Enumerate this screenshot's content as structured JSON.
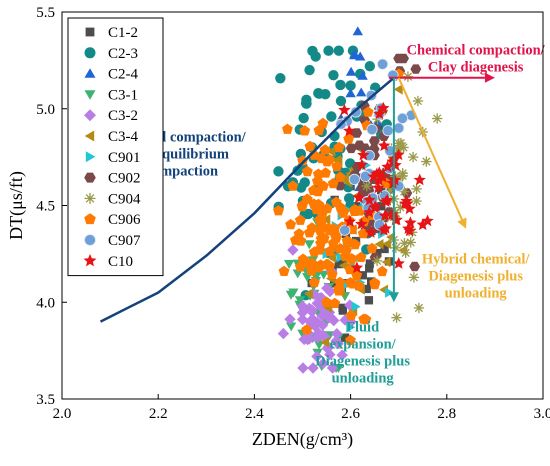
{
  "chart_data": {
    "type": "scatter",
    "xlabel": "ZDEN(g/cm³)",
    "ylabel": "DT(μs/ft)",
    "xlim": [
      2.0,
      3.0
    ],
    "ylim": [
      3.5,
      5.5
    ],
    "xticks": [
      "2.0",
      "2.2",
      "2.4",
      "2.6",
      "2.8",
      "3.0"
    ],
    "yticks": [
      "3.5",
      "4.0",
      "4.5",
      "5.0",
      "5.5"
    ],
    "grid": false,
    "legend_position": "top-left",
    "series": [
      {
        "name": "C1-2",
        "color": "#4d4d4d",
        "marker": "square",
        "cx": 2.62,
        "cy": 4.3,
        "sx": 0.04,
        "sy": 0.28,
        "n": 30,
        "seed": 11,
        "x": [
          2.6,
          2.64,
          2.66
        ],
        "y": [
          4.6,
          4.2,
          4.9
        ]
      },
      {
        "name": "C2-3",
        "color": "#148a88",
        "marker": "circle",
        "cx": 2.56,
        "cy": 4.75,
        "sx": 0.05,
        "sy": 0.28,
        "n": 55,
        "seed": 23,
        "x": [
          2.48,
          2.5,
          2.52,
          2.54,
          2.56,
          2.58,
          2.6,
          2.62,
          2.64,
          2.47,
          2.49
        ],
        "y": [
          4.62,
          4.7,
          4.8,
          4.88,
          4.96,
          5.04,
          5.12,
          5.18,
          5.22,
          4.6,
          4.68
        ]
      },
      {
        "name": "C2-4",
        "color": "#1f65d6",
        "marker": "triangle-up",
        "cx": 2.63,
        "cy": 4.9,
        "sx": 0.02,
        "sy": 0.2,
        "n": 8,
        "seed": 37,
        "x": [
          2.615,
          2.62,
          2.625,
          2.6,
          2.58
        ],
        "y": [
          5.4,
          5.27,
          5.17,
          5.08,
          4.95
        ]
      },
      {
        "name": "C3-1",
        "color": "#3cb371",
        "marker": "triangle-down",
        "cx": 2.53,
        "cy": 4.0,
        "sx": 0.035,
        "sy": 0.17,
        "n": 40,
        "seed": 41,
        "x": [
          2.54,
          2.49,
          2.51
        ],
        "y": [
          3.67,
          4.2,
          4.13
        ]
      },
      {
        "name": "C3-2",
        "color": "#b97de6",
        "marker": "diamond",
        "cx": 2.54,
        "cy": 3.9,
        "sx": 0.03,
        "sy": 0.12,
        "n": 55,
        "seed": 53,
        "x": [
          2.48,
          2.5,
          2.53,
          2.57
        ],
        "y": [
          4.27,
          3.98,
          3.72,
          3.8
        ]
      },
      {
        "name": "C3-4",
        "color": "#b58b16",
        "marker": "triangle-left",
        "cx": 2.6,
        "cy": 4.3,
        "sx": 0.05,
        "sy": 0.25,
        "n": 35,
        "seed": 67,
        "x": [
          2.58,
          2.66,
          2.7
        ],
        "y": [
          4.05,
          4.3,
          5.1
        ]
      },
      {
        "name": "C901",
        "color": "#22c7d6",
        "marker": "triangle-right",
        "cx": 2.62,
        "cy": 4.25,
        "sx": 0.04,
        "sy": 0.2,
        "n": 14,
        "seed": 71,
        "x": [
          2.68,
          2.55
        ],
        "y": [
          4.05,
          4.25
        ]
      },
      {
        "name": "C902",
        "color": "#7a4a4a",
        "marker": "hexagon",
        "cx": 2.65,
        "cy": 4.65,
        "sx": 0.035,
        "sy": 0.22,
        "n": 45,
        "seed": 83,
        "x": [
          2.69,
          2.7,
          2.71,
          2.66
        ],
        "y": [
          5.17,
          5.26,
          5.26,
          5.0
        ]
      },
      {
        "name": "C904",
        "color": "#9a9a4a",
        "marker": "asterisk",
        "cx": 2.68,
        "cy": 4.55,
        "sx": 0.04,
        "sy": 0.3,
        "n": 40,
        "seed": 97,
        "x": [
          2.74,
          2.75,
          2.71,
          2.73
        ],
        "y": [
          5.04,
          4.88,
          4.8,
          4.75
        ]
      },
      {
        "name": "C906",
        "color": "#ff7a00",
        "marker": "pentagon",
        "cx": 2.56,
        "cy": 4.4,
        "sx": 0.045,
        "sy": 0.25,
        "n": 110,
        "seed": 101,
        "x": [
          2.48,
          2.5,
          2.52,
          2.55,
          2.6,
          2.65,
          2.7
        ],
        "y": [
          4.6,
          4.5,
          4.2,
          4.0,
          4.1,
          4.1,
          5.18
        ]
      },
      {
        "name": "C907",
        "color": "#6e9fd6",
        "marker": "sphere",
        "cx": 2.64,
        "cy": 4.7,
        "sx": 0.03,
        "sy": 0.22,
        "n": 25,
        "seed": 113,
        "x": [
          2.7,
          2.7,
          2.66
        ],
        "y": [
          4.9,
          4.6,
          4.4
        ]
      },
      {
        "name": "C10",
        "color": "#e61414",
        "marker": "star",
        "cx": 2.67,
        "cy": 4.55,
        "sx": 0.035,
        "sy": 0.2,
        "n": 45,
        "seed": 127,
        "x": [
          2.75,
          2.76,
          2.72,
          2.7
        ],
        "y": [
          4.4,
          4.42,
          4.38,
          4.2
        ]
      }
    ],
    "trend_curve": {
      "color": "#14427a",
      "x": [
        2.08,
        2.2,
        2.3,
        2.4,
        2.5,
        2.6,
        2.69
      ],
      "y": [
        3.9,
        4.05,
        4.24,
        4.46,
        4.72,
        4.97,
        5.16
      ]
    },
    "annotations": [
      {
        "lines": [
          "Chemical compaction/",
          "Clay diagenesis"
        ],
        "color": "#e0144a",
        "x": 2.86,
        "y": 5.28
      },
      {
        "lines": [
          "Normal compaction/",
          "Disequilibrium",
          "compaction"
        ],
        "color": "#14427a",
        "x": 2.25,
        "y": 4.83
      },
      {
        "lines": [
          "Hybrid chemical/",
          "Diagenesis plus",
          "unloading"
        ],
        "color": "#f0b030",
        "x": 2.86,
        "y": 4.2
      },
      {
        "lines": [
          "Fluid",
          "expansion/",
          "Diagenesis plus",
          "unloading"
        ],
        "color": "#1f9e96",
        "x": 2.625,
        "y": 3.85
      }
    ],
    "arrows": [
      {
        "color": "#e0144a",
        "from": [
          2.68,
          5.16
        ],
        "to": [
          2.9,
          5.16
        ]
      },
      {
        "color": "#f0b030",
        "from": [
          2.7,
          5.16
        ],
        "to": [
          2.84,
          4.38
        ]
      },
      {
        "color": "#1f9e96",
        "from": [
          2.69,
          5.16
        ],
        "to": [
          2.69,
          4.0
        ]
      }
    ]
  }
}
